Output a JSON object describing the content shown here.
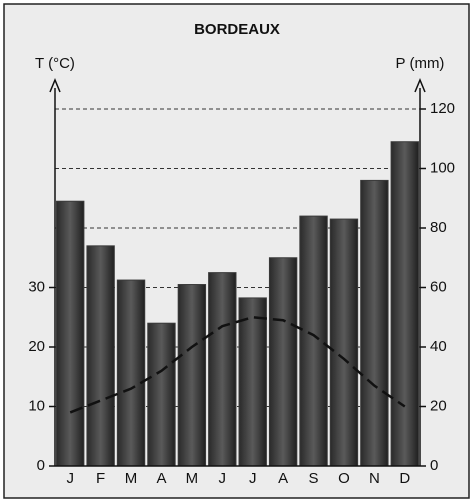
{
  "chart_data": {
    "type": "combo",
    "title": "BORDEAUX",
    "y_label": "T (°C)",
    "y2_label": "P (mm)",
    "categories": [
      "J",
      "F",
      "M",
      "A",
      "M",
      "J",
      "J",
      "A",
      "S",
      "O",
      "N",
      "D"
    ],
    "series": [
      {
        "name": "P (mm)",
        "type": "bar",
        "axis": "y2",
        "color": "#3a3a3a",
        "values": [
          89,
          74,
          62.5,
          48,
          61,
          65,
          56.5,
          70,
          84,
          83,
          96,
          109
        ]
      },
      {
        "name": "T (°C)",
        "type": "line",
        "axis": "y",
        "color": "#111111",
        "dashed": true,
        "values": [
          9,
          11,
          13,
          16,
          20,
          23.5,
          25,
          24.5,
          22,
          18,
          13.5,
          10
        ]
      }
    ],
    "ylim": [
      0,
      60
    ],
    "yticks": [
      0,
      10,
      20,
      30
    ],
    "y2lim": [
      0,
      120
    ],
    "y2ticks": [
      0,
      20,
      40,
      60,
      80,
      100,
      120
    ],
    "grid": true
  }
}
